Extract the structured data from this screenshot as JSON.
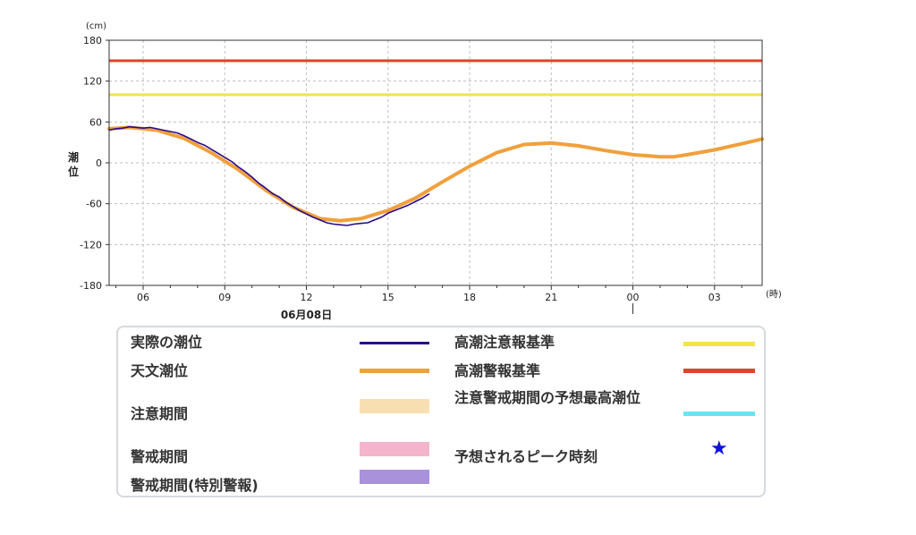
{
  "chart_data": {
    "type": "line",
    "ylabel": "潮位",
    "yunit": "(cm)",
    "xunit": "(時)",
    "ylim": [
      -180,
      180
    ],
    "yticks": [
      180,
      120,
      60,
      0,
      -60,
      -120,
      -180
    ],
    "xlim_hours": [
      4.75,
      28.75
    ],
    "xticks": [
      {
        "hour": 6,
        "label": "06"
      },
      {
        "hour": 9,
        "label": "09"
      },
      {
        "hour": 12,
        "label": "12"
      },
      {
        "hour": 15,
        "label": "15"
      },
      {
        "hour": 18,
        "label": "18"
      },
      {
        "hour": 21,
        "label": "21"
      },
      {
        "hour": 24,
        "label": "00"
      },
      {
        "hour": 27,
        "label": "03"
      }
    ],
    "date_label": "06月08日",
    "date_label_hour": 12,
    "day_boundary_hour": 24,
    "thresholds": [
      {
        "name": "高潮警報基準",
        "value": 150,
        "color": "#e0442c"
      },
      {
        "name": "高潮注意報基準",
        "value": 100,
        "color": "#f2e34a"
      }
    ],
    "series": [
      {
        "name": "天文潮位",
        "color": "#f0a03c",
        "x": [
          4.75,
          5.5,
          6.5,
          7.5,
          8.5,
          9.5,
          10.5,
          11.5,
          12.5,
          13.25,
          14,
          15,
          16,
          17,
          18,
          19,
          20,
          21,
          22,
          23,
          24,
          25,
          25.5,
          26,
          27,
          28,
          28.75
        ],
        "y": [
          50,
          52,
          48,
          36,
          15,
          -10,
          -40,
          -65,
          -82,
          -85,
          -82,
          -70,
          -52,
          -28,
          -5,
          15,
          27,
          29,
          25,
          18,
          12,
          9,
          9,
          12,
          19,
          28,
          35
        ]
      },
      {
        "name": "実際の潮位",
        "color": "#2a0a8c",
        "x": [
          4.75,
          5.0,
          5.25,
          5.5,
          5.75,
          6.0,
          6.25,
          6.5,
          6.75,
          7.0,
          7.25,
          7.5,
          7.75,
          8.0,
          8.25,
          8.5,
          8.75,
          9.0,
          9.25,
          9.5,
          9.75,
          10.0,
          10.25,
          10.5,
          10.75,
          11.0,
          11.25,
          11.5,
          11.75,
          12.0,
          12.25,
          12.5,
          12.75,
          13.0,
          13.25,
          13.5,
          13.75,
          14.0,
          14.25,
          14.5,
          14.75,
          15.0,
          15.25,
          15.5,
          15.75,
          16.0,
          16.25,
          16.5
        ],
        "y": [
          48,
          50,
          51,
          53,
          52,
          51,
          52,
          50,
          48,
          46,
          44,
          40,
          35,
          30,
          26,
          20,
          14,
          8,
          2,
          -6,
          -13,
          -21,
          -30,
          -37,
          -45,
          -50,
          -58,
          -64,
          -70,
          -75,
          -80,
          -84,
          -88,
          -90,
          -91,
          -92,
          -90,
          -89,
          -88,
          -84,
          -80,
          -74,
          -70,
          -66,
          -62,
          -57,
          -52,
          -46
        ]
      }
    ],
    "legend": [
      {
        "label": "実際の潮位",
        "kind": "line",
        "color": "#2a0a8c"
      },
      {
        "label": "天文潮位",
        "kind": "thick-line",
        "color": "#f0a03c"
      },
      {
        "label": "注意期間",
        "kind": "box",
        "color": "#f8dfb2"
      },
      {
        "label": "警戒期間",
        "kind": "box",
        "color": "#f4b5cc"
      },
      {
        "label": "警戒期間(特別警報)",
        "kind": "box",
        "color": "#a991dc"
      },
      {
        "label": "高潮注意報基準",
        "kind": "thick-line",
        "color": "#f2e34a"
      },
      {
        "label": "高潮警報基準",
        "kind": "thick-line",
        "color": "#e0442c"
      },
      {
        "label": "注意警戒期間の予想最高潮位",
        "kind": "thick-line",
        "color": "#66e6f2"
      },
      {
        "label": "予想されるピーク時刻",
        "kind": "star",
        "color": "#1010dd",
        "symbol": "★"
      }
    ]
  }
}
